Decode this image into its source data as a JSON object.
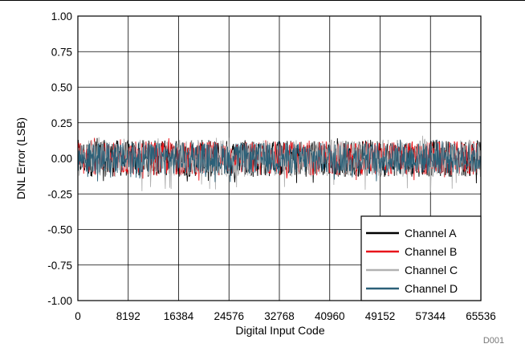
{
  "chart_data": {
    "type": "line",
    "xlabel": "Digital Input Code",
    "ylabel": "DNL Error (LSB)",
    "xlim": [
      0,
      65536
    ],
    "ylim": [
      -1.0,
      1.0
    ],
    "x_ticks": [
      "0",
      "8192",
      "16384",
      "24576",
      "32768",
      "40960",
      "49152",
      "57344",
      "65536"
    ],
    "y_ticks": [
      "1.00",
      "0.75",
      "0.50",
      "0.25",
      "0.00",
      "-0.25",
      "-0.50",
      "-0.75",
      "-1.00"
    ],
    "grid": true,
    "legend_position": "bottom-right",
    "series": [
      {
        "name": "Channel A",
        "color": "#000000",
        "typical_band": [
          -0.13,
          0.13
        ],
        "peaks": [
          -0.2,
          0.16
        ]
      },
      {
        "name": "Channel B",
        "color": "#e8151b",
        "typical_band": [
          -0.12,
          0.12
        ],
        "peaks": [
          -0.17,
          0.15
        ]
      },
      {
        "name": "Channel C",
        "color": "#b1b1b1",
        "typical_band": [
          -0.13,
          0.13
        ],
        "peaks": [
          -0.24,
          0.17
        ]
      },
      {
        "name": "Channel D",
        "color": "#2b6078",
        "typical_band": [
          -0.11,
          0.11
        ],
        "peaks": [
          -0.17,
          0.14
        ]
      }
    ]
  },
  "figure_id": "D001"
}
